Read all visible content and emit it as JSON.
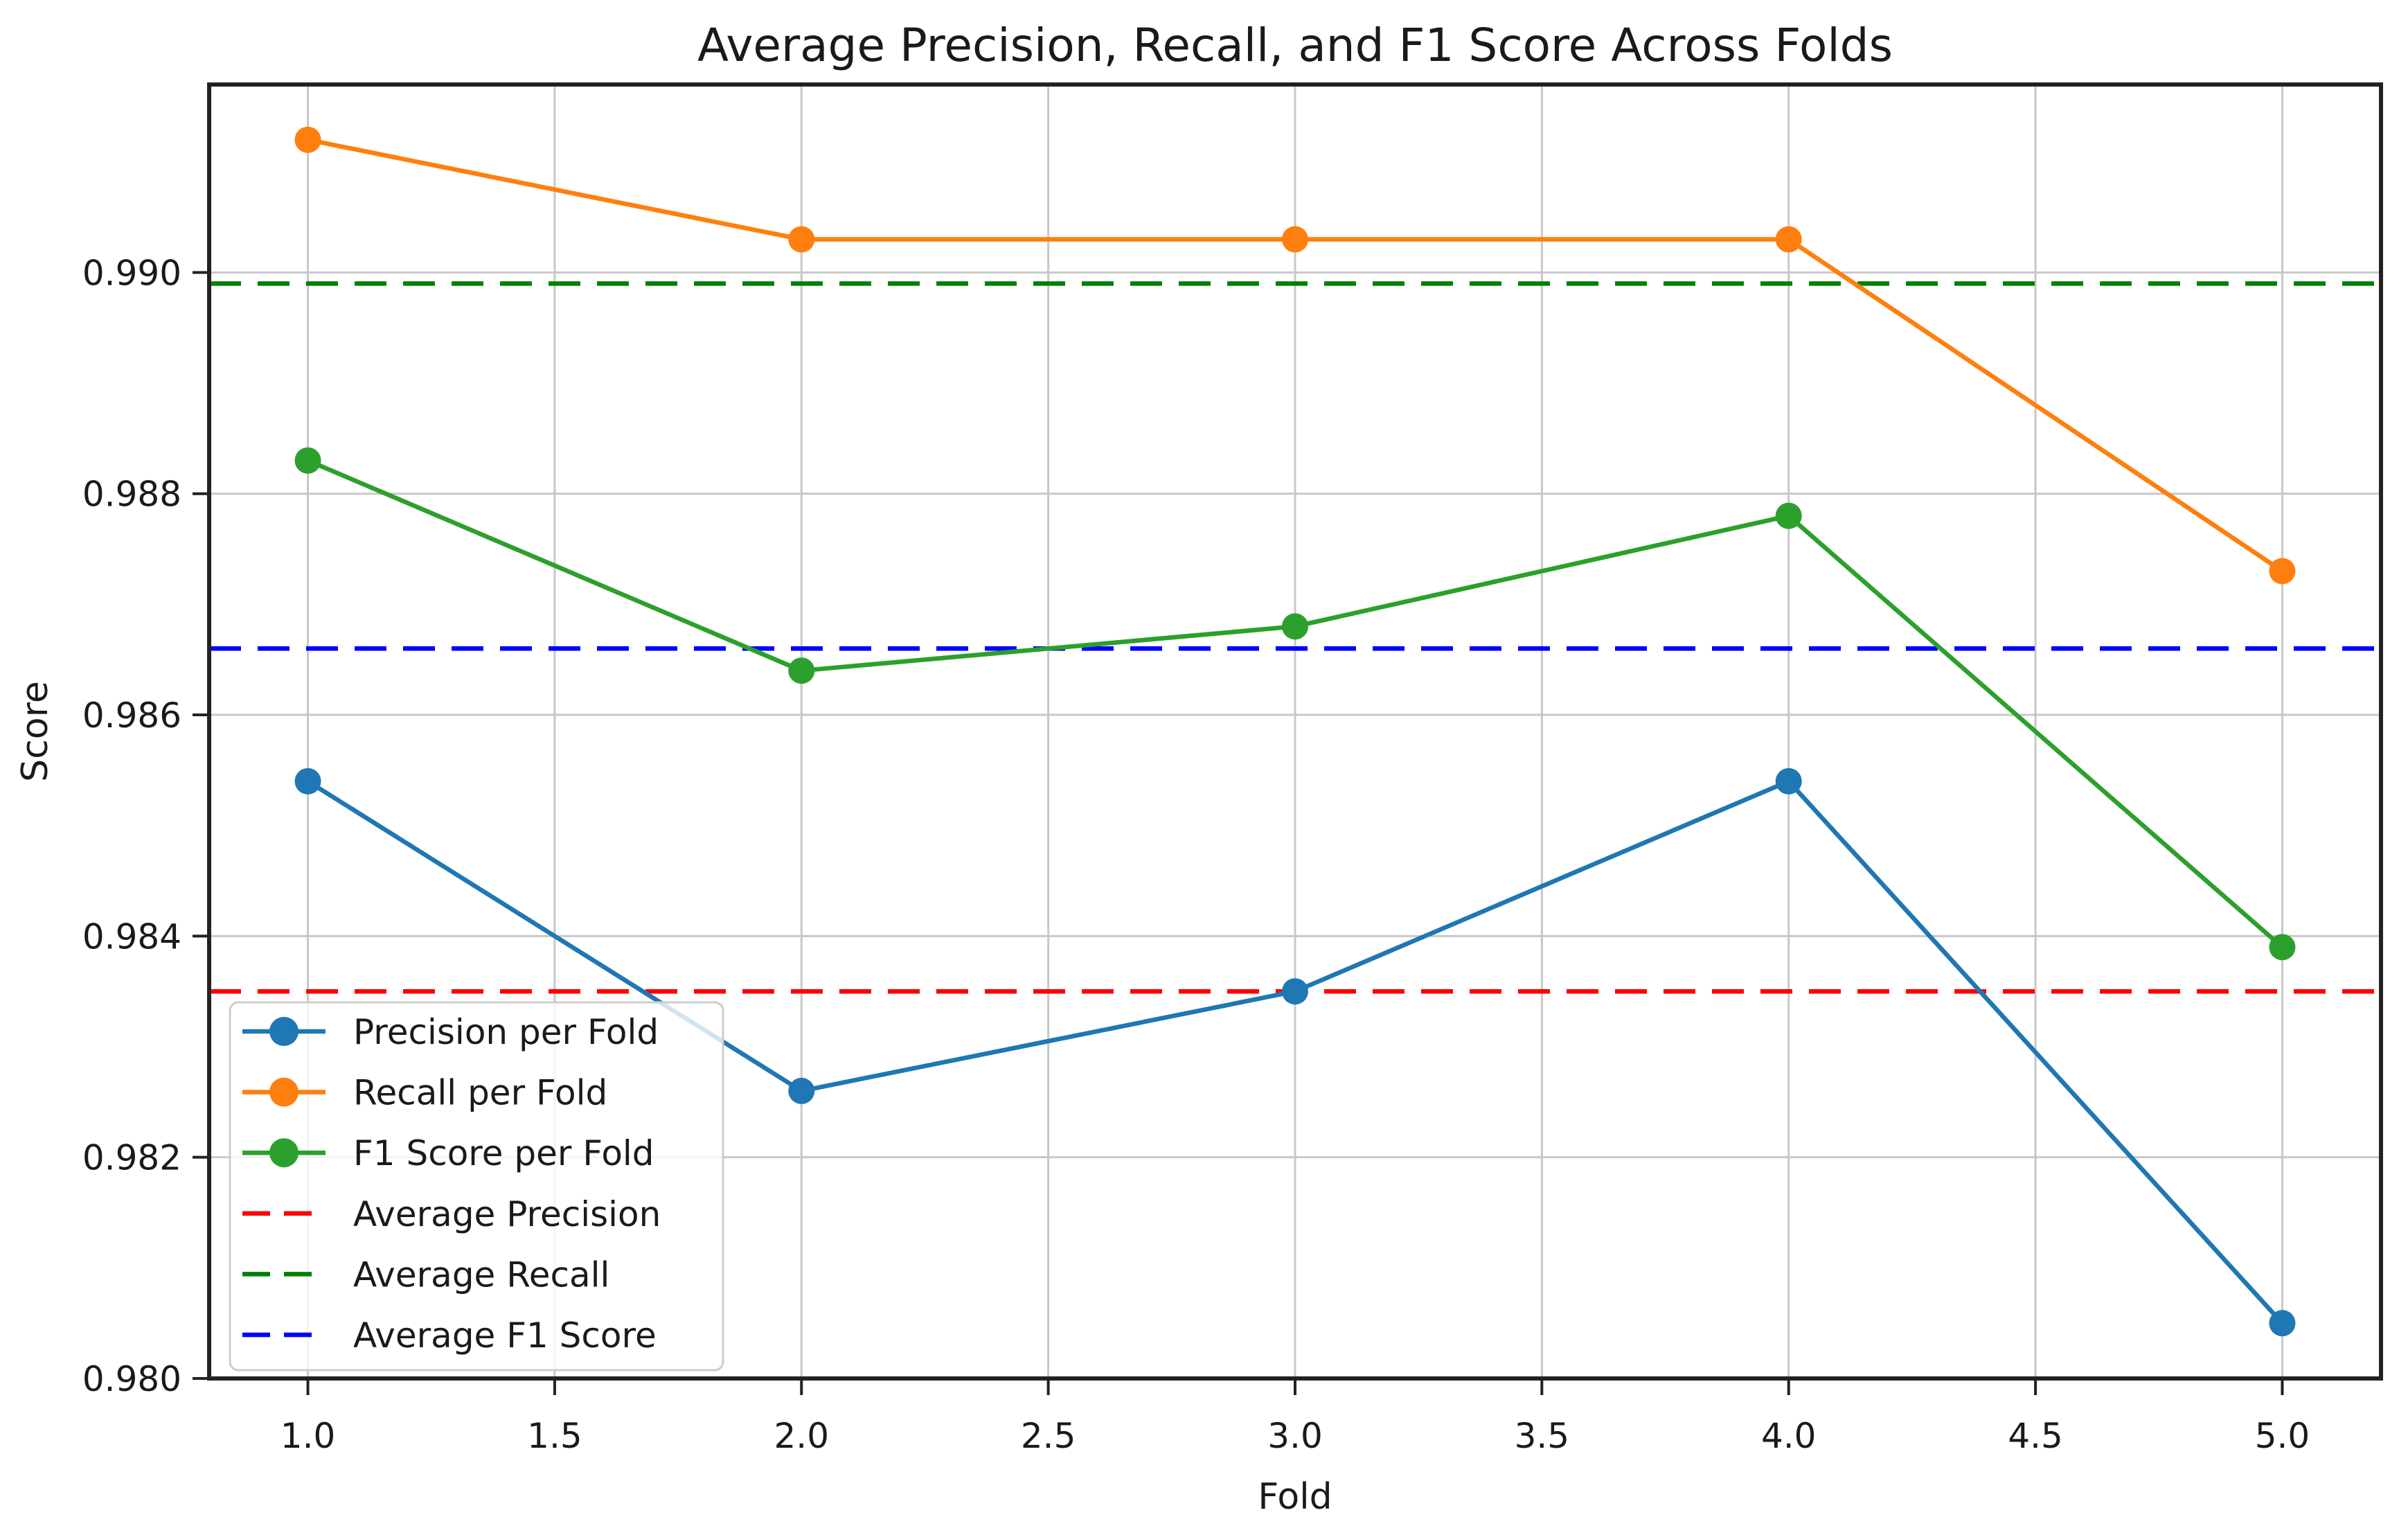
{
  "chart_data": {
    "type": "line",
    "title": "Average Precision, Recall, and F1 Score Across Folds",
    "xlabel": "Fold",
    "ylabel": "Score",
    "x": [
      1,
      2,
      3,
      4,
      5
    ],
    "series": [
      {
        "name": "Precision per Fold",
        "color": "#1f77b4",
        "line_style": "solid",
        "marker": "circle",
        "values": [
          0.9854,
          0.9826,
          0.9835,
          0.9854,
          0.9805
        ]
      },
      {
        "name": "Recall per Fold",
        "color": "#ff7f0e",
        "line_style": "solid",
        "marker": "circle",
        "values": [
          0.9912,
          0.9903,
          0.9903,
          0.9903,
          0.9873
        ]
      },
      {
        "name": "F1 Score per Fold",
        "color": "#2ca02c",
        "line_style": "solid",
        "marker": "circle",
        "values": [
          0.9883,
          0.9864,
          0.9868,
          0.9878,
          0.9839
        ]
      }
    ],
    "average_lines": [
      {
        "name": "Average Precision",
        "color": "#ff0000",
        "line_style": "dashed",
        "value": 0.9835
      },
      {
        "name": "Average Recall",
        "color": "#008000",
        "line_style": "dashed",
        "value": 0.9899
      },
      {
        "name": "Average F1 Score",
        "color": "#0000ff",
        "line_style": "dashed",
        "value": 0.9866
      }
    ],
    "x_ticks": [
      {
        "value": 1.0,
        "label": "1.0"
      },
      {
        "value": 1.5,
        "label": "1.5"
      },
      {
        "value": 2.0,
        "label": "2.0"
      },
      {
        "value": 2.5,
        "label": "2.5"
      },
      {
        "value": 3.0,
        "label": "3.0"
      },
      {
        "value": 3.5,
        "label": "3.5"
      },
      {
        "value": 4.0,
        "label": "4.0"
      },
      {
        "value": 4.5,
        "label": "4.5"
      },
      {
        "value": 5.0,
        "label": "5.0"
      }
    ],
    "y_ticks": [
      {
        "value": 0.98,
        "label": "0.980"
      },
      {
        "value": 0.982,
        "label": "0.982"
      },
      {
        "value": 0.984,
        "label": "0.984"
      },
      {
        "value": 0.986,
        "label": "0.986"
      },
      {
        "value": 0.988,
        "label": "0.988"
      },
      {
        "value": 0.99,
        "label": "0.990"
      }
    ],
    "xlim": [
      0.8,
      5.2
    ],
    "ylim": [
      0.98,
      0.9917
    ],
    "grid": true,
    "grid_color": "#c8c8c8",
    "spine_color": "#222222",
    "legend_position": "lower left",
    "legend_background": "#ffffff",
    "legend_border_color": "#cccccc"
  }
}
